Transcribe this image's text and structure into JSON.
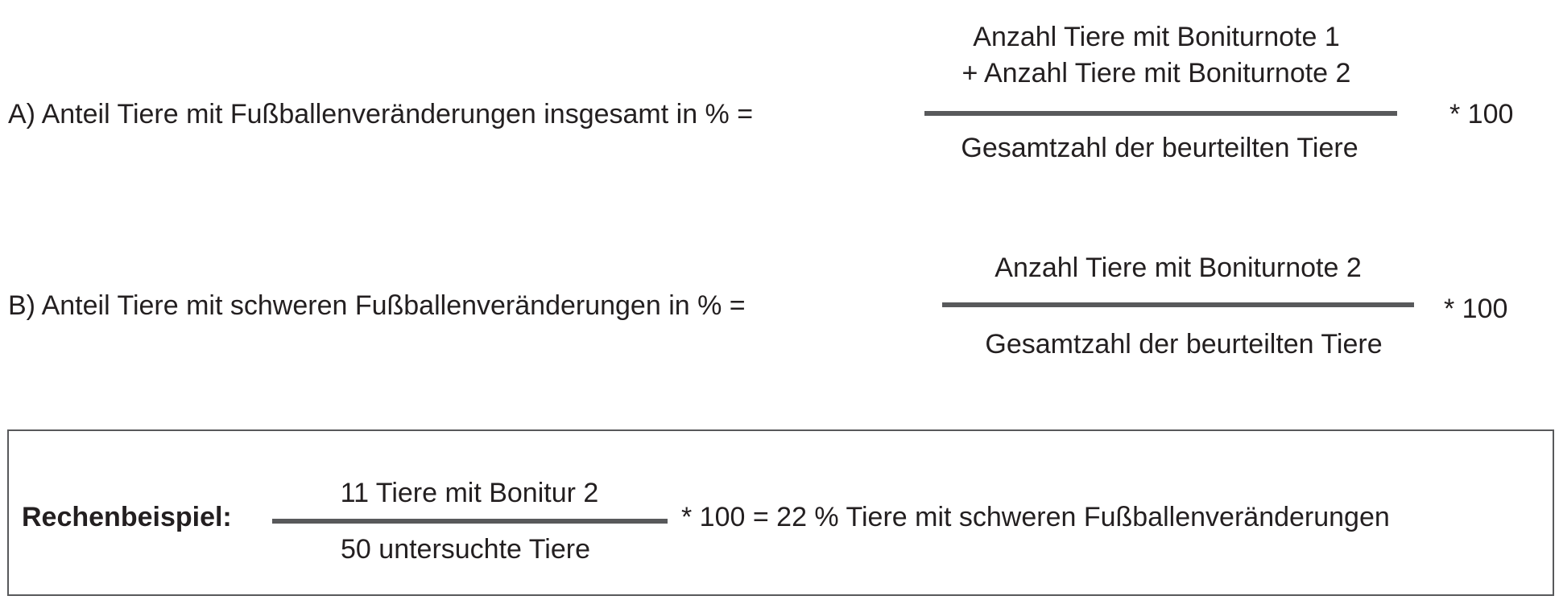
{
  "formula_a": {
    "label": "A)  Anteil Tiere mit Fußballenveränderungen insgesamt in % =",
    "numerator_line1": "Anzahl Tiere mit Boniturnote 1",
    "numerator_line2": "+ Anzahl Tiere mit Boniturnote 2",
    "denominator": "Gesamtzahl der beurteilten Tiere",
    "multiplier": "* 100"
  },
  "formula_b": {
    "label": "B)  Anteil Tiere mit schweren Fußballenveränderungen in %  =",
    "numerator": "Anzahl Tiere mit Boniturnote 2",
    "denominator": "Gesamtzahl der beurteilten Tiere",
    "multiplier": "* 100"
  },
  "example": {
    "label": "Rechenbeispiel:",
    "numerator": "11 Tiere mit Bonitur  2",
    "denominator": "50 untersuchte Tiere",
    "result": "* 100 =  22 % Tiere mit schweren Fußballenveränderungen"
  },
  "colors": {
    "text": "#231f20",
    "rule": "#58595b"
  }
}
